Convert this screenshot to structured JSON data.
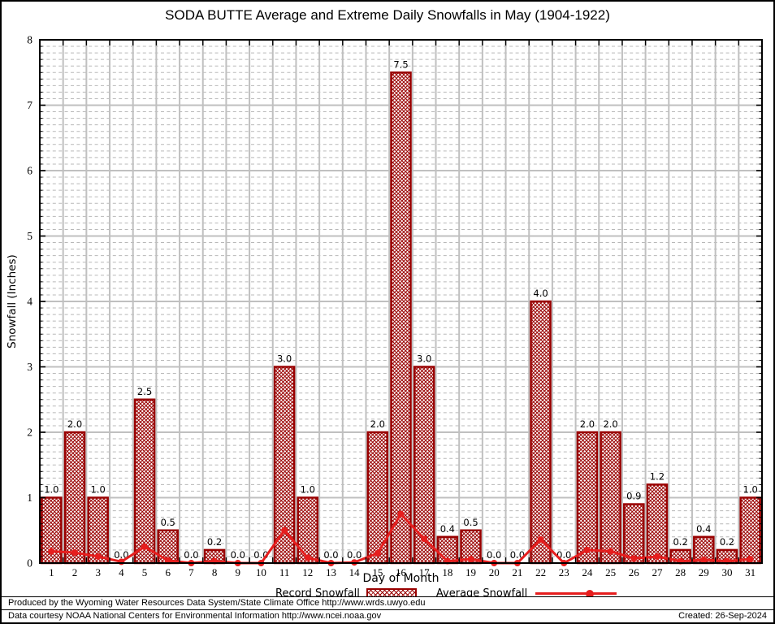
{
  "title": "SODA BUTTE Average and Extreme Daily Snowfalls in May (1904-1922)",
  "chart_data": {
    "type": "bar",
    "title": "SODA BUTTE Average and Extreme Daily Snowfalls in May (1904-1922)",
    "xlabel": "Day of Month",
    "ylabel": "Snowfall (Inches)",
    "ylim": [
      0,
      8
    ],
    "ytick_step": 1,
    "minor_step": 0.1,
    "grid": true,
    "legend_position": "bottom",
    "categories": [
      1,
      2,
      3,
      4,
      5,
      6,
      7,
      8,
      9,
      10,
      11,
      12,
      13,
      14,
      15,
      16,
      17,
      18,
      19,
      20,
      21,
      22,
      23,
      24,
      25,
      26,
      27,
      28,
      29,
      30,
      31
    ],
    "series": [
      {
        "name": "Record Snowfall",
        "type": "bar",
        "values": [
          1.0,
          2.0,
          1.0,
          0.0,
          2.5,
          0.5,
          0.0,
          0.2,
          0.0,
          0.0,
          3.0,
          1.0,
          0.0,
          0.0,
          2.0,
          7.5,
          3.0,
          0.4,
          0.5,
          0.0,
          0.0,
          4.0,
          0.0,
          2.0,
          2.0,
          0.9,
          1.2,
          0.2,
          0.4,
          0.2,
          1.0
        ]
      },
      {
        "name": "Average Snowfall",
        "type": "line",
        "values": [
          0.18,
          0.16,
          0.1,
          0.02,
          0.25,
          0.04,
          0.0,
          0.03,
          0.0,
          0.0,
          0.5,
          0.08,
          0.0,
          0.01,
          0.15,
          0.75,
          0.37,
          0.03,
          0.06,
          0.0,
          0.0,
          0.36,
          0.0,
          0.2,
          0.18,
          0.07,
          0.1,
          0.03,
          0.05,
          0.03,
          0.06
        ]
      }
    ],
    "bar_labels_format": "one-decimal",
    "colors": {
      "bar_border": "#990000",
      "bar_hatch": "#990000",
      "line": "#e61e1e",
      "grid_major": "#c0c0c0",
      "grid_minor": "#b8b8b8",
      "axis": "#000000"
    }
  },
  "legend": {
    "record_label": "Record Snowfall",
    "average_label": "Average Snowfall"
  },
  "footer": {
    "line1": "Produced by the Wyoming Water Resources Data System/State Climate Office http://www.wrds.uwyo.edu",
    "line2": "Data courtesy NOAA National Centers for Environmental Information http://www.ncei.noaa.gov",
    "created": "Created: 26-Sep-2024"
  }
}
